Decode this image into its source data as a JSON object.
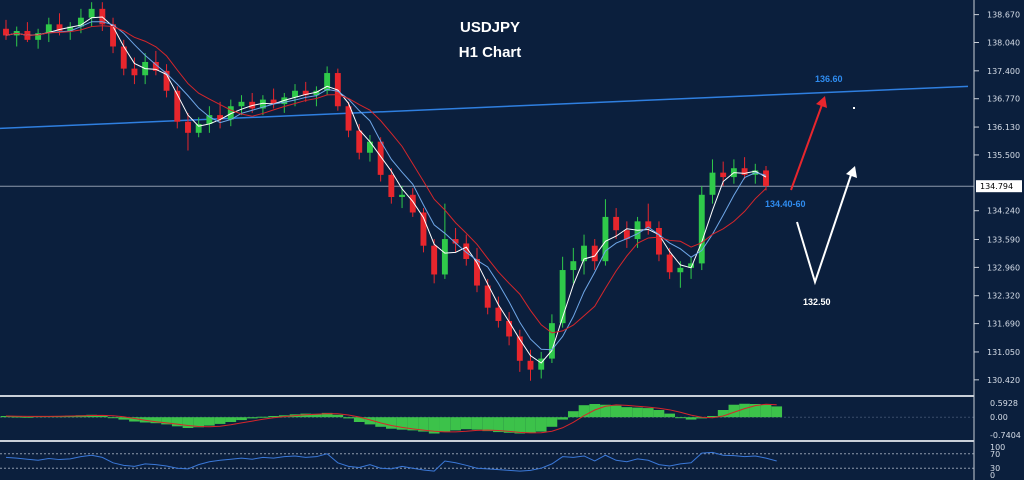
{
  "chart_data": {
    "type": "candlestick",
    "title": "USDJPY",
    "subtitle": "H1 Chart",
    "price_axis": {
      "ticks": [
        "138.670",
        "138.040",
        "137.400",
        "136.770",
        "136.130",
        "135.500",
        "134.240",
        "133.590",
        "132.960",
        "132.320",
        "131.690",
        "131.050",
        "130.420"
      ],
      "range": [
        130.1,
        139.0
      ]
    },
    "current_price": "134.794",
    "candles": [
      {
        "o": 138.35,
        "h": 138.55,
        "l": 138.1,
        "c": 138.2
      },
      {
        "o": 138.2,
        "h": 138.4,
        "l": 137.95,
        "c": 138.3
      },
      {
        "o": 138.3,
        "h": 138.5,
        "l": 138.05,
        "c": 138.1
      },
      {
        "o": 138.1,
        "h": 138.35,
        "l": 137.9,
        "c": 138.25
      },
      {
        "o": 138.25,
        "h": 138.6,
        "l": 138.05,
        "c": 138.45
      },
      {
        "o": 138.45,
        "h": 138.7,
        "l": 138.2,
        "c": 138.3
      },
      {
        "o": 138.3,
        "h": 138.5,
        "l": 138.1,
        "c": 138.4
      },
      {
        "o": 138.4,
        "h": 138.8,
        "l": 138.25,
        "c": 138.6
      },
      {
        "o": 138.6,
        "h": 138.95,
        "l": 138.4,
        "c": 138.8
      },
      {
        "o": 138.8,
        "h": 138.95,
        "l": 138.3,
        "c": 138.45
      },
      {
        "o": 138.45,
        "h": 138.6,
        "l": 137.8,
        "c": 137.95
      },
      {
        "o": 137.95,
        "h": 138.1,
        "l": 137.3,
        "c": 137.45
      },
      {
        "o": 137.45,
        "h": 137.7,
        "l": 137.1,
        "c": 137.3
      },
      {
        "o": 137.3,
        "h": 137.8,
        "l": 137.1,
        "c": 137.6
      },
      {
        "o": 137.6,
        "h": 137.85,
        "l": 137.3,
        "c": 137.4
      },
      {
        "o": 137.4,
        "h": 137.55,
        "l": 136.8,
        "c": 136.95
      },
      {
        "o": 136.95,
        "h": 137.05,
        "l": 136.1,
        "c": 136.25
      },
      {
        "o": 136.25,
        "h": 136.45,
        "l": 135.6,
        "c": 136.0
      },
      {
        "o": 136.0,
        "h": 136.35,
        "l": 135.9,
        "c": 136.2
      },
      {
        "o": 136.2,
        "h": 136.6,
        "l": 136.0,
        "c": 136.4
      },
      {
        "o": 136.4,
        "h": 136.7,
        "l": 136.1,
        "c": 136.3
      },
      {
        "o": 136.3,
        "h": 136.75,
        "l": 136.15,
        "c": 136.6
      },
      {
        "o": 136.6,
        "h": 136.85,
        "l": 136.4,
        "c": 136.7
      },
      {
        "o": 136.7,
        "h": 136.9,
        "l": 136.45,
        "c": 136.55
      },
      {
        "o": 136.55,
        "h": 136.85,
        "l": 136.4,
        "c": 136.75
      },
      {
        "o": 136.75,
        "h": 137.0,
        "l": 136.55,
        "c": 136.65
      },
      {
        "o": 136.65,
        "h": 136.9,
        "l": 136.45,
        "c": 136.8
      },
      {
        "o": 136.8,
        "h": 137.1,
        "l": 136.6,
        "c": 136.95
      },
      {
        "o": 136.95,
        "h": 137.15,
        "l": 136.7,
        "c": 136.85
      },
      {
        "o": 136.85,
        "h": 137.05,
        "l": 136.6,
        "c": 136.95
      },
      {
        "o": 136.95,
        "h": 137.5,
        "l": 136.85,
        "c": 137.35
      },
      {
        "o": 137.35,
        "h": 137.45,
        "l": 136.5,
        "c": 136.6
      },
      {
        "o": 136.6,
        "h": 136.7,
        "l": 135.9,
        "c": 136.05
      },
      {
        "o": 136.05,
        "h": 136.2,
        "l": 135.4,
        "c": 135.55
      },
      {
        "o": 135.55,
        "h": 135.95,
        "l": 135.35,
        "c": 135.8
      },
      {
        "o": 135.8,
        "h": 135.9,
        "l": 134.9,
        "c": 135.05
      },
      {
        "o": 135.05,
        "h": 135.2,
        "l": 134.4,
        "c": 134.55
      },
      {
        "o": 134.55,
        "h": 134.8,
        "l": 134.3,
        "c": 134.6
      },
      {
        "o": 134.6,
        "h": 134.75,
        "l": 134.1,
        "c": 134.2
      },
      {
        "o": 134.2,
        "h": 134.3,
        "l": 133.3,
        "c": 133.45
      },
      {
        "o": 133.45,
        "h": 133.6,
        "l": 132.6,
        "c": 132.8
      },
      {
        "o": 132.8,
        "h": 134.4,
        "l": 132.7,
        "c": 133.6
      },
      {
        "o": 133.6,
        "h": 133.85,
        "l": 133.3,
        "c": 133.5
      },
      {
        "o": 133.5,
        "h": 133.7,
        "l": 133.0,
        "c": 133.15
      },
      {
        "o": 133.15,
        "h": 133.4,
        "l": 132.4,
        "c": 132.55
      },
      {
        "o": 132.55,
        "h": 132.7,
        "l": 131.9,
        "c": 132.05
      },
      {
        "o": 132.05,
        "h": 132.3,
        "l": 131.6,
        "c": 131.75
      },
      {
        "o": 131.75,
        "h": 131.95,
        "l": 131.2,
        "c": 131.4
      },
      {
        "o": 131.4,
        "h": 131.55,
        "l": 130.6,
        "c": 130.85
      },
      {
        "o": 130.85,
        "h": 131.1,
        "l": 130.4,
        "c": 130.65
      },
      {
        "o": 130.65,
        "h": 131.05,
        "l": 130.45,
        "c": 130.9
      },
      {
        "o": 130.9,
        "h": 131.9,
        "l": 130.8,
        "c": 131.7
      },
      {
        "o": 131.7,
        "h": 133.2,
        "l": 131.6,
        "c": 132.9
      },
      {
        "o": 132.9,
        "h": 133.4,
        "l": 132.6,
        "c": 133.1
      },
      {
        "o": 133.1,
        "h": 133.7,
        "l": 132.8,
        "c": 133.45
      },
      {
        "o": 133.45,
        "h": 133.6,
        "l": 132.9,
        "c": 133.1
      },
      {
        "o": 133.1,
        "h": 134.5,
        "l": 133.0,
        "c": 134.1
      },
      {
        "o": 134.1,
        "h": 134.3,
        "l": 133.6,
        "c": 133.8
      },
      {
        "o": 133.8,
        "h": 134.0,
        "l": 133.4,
        "c": 133.6
      },
      {
        "o": 133.6,
        "h": 134.1,
        "l": 133.4,
        "c": 134.0
      },
      {
        "o": 134.0,
        "h": 134.4,
        "l": 133.7,
        "c": 133.85
      },
      {
        "o": 133.85,
        "h": 134.0,
        "l": 133.1,
        "c": 133.25
      },
      {
        "o": 133.25,
        "h": 133.4,
        "l": 132.7,
        "c": 132.85
      },
      {
        "o": 132.85,
        "h": 133.1,
        "l": 132.5,
        "c": 132.95
      },
      {
        "o": 132.95,
        "h": 133.2,
        "l": 132.7,
        "c": 133.05
      },
      {
        "o": 133.05,
        "h": 134.8,
        "l": 132.9,
        "c": 134.6
      },
      {
        "o": 134.6,
        "h": 135.4,
        "l": 134.4,
        "c": 135.1
      },
      {
        "o": 135.1,
        "h": 135.35,
        "l": 134.8,
        "c": 135.0
      },
      {
        "o": 135.0,
        "h": 135.4,
        "l": 134.85,
        "c": 135.2
      },
      {
        "o": 135.2,
        "h": 135.45,
        "l": 134.95,
        "c": 135.05
      },
      {
        "o": 135.05,
        "h": 135.3,
        "l": 134.85,
        "c": 135.15
      },
      {
        "o": 135.15,
        "h": 135.25,
        "l": 134.7,
        "c": 134.8
      }
    ],
    "trendline": {
      "color": "#2f7fe0",
      "label": "136.60",
      "start_price": 136.1,
      "end_price": 137.05
    },
    "horizontal_line": {
      "price": 134.794,
      "color": "#8d99ab"
    },
    "annotations": [
      {
        "text": "136.60",
        "color": "#2f8cf0"
      },
      {
        "text": "134.40-60",
        "color": "#2f8cf0"
      },
      {
        "text": "132.50",
        "color": "#ffffff"
      }
    ],
    "macd": {
      "ticks": [
        "0.5928",
        "0.00",
        "-0.7404"
      ],
      "range": [
        -0.95,
        0.8
      ],
      "values": [
        0.05,
        0.03,
        0.02,
        0.04,
        0.05,
        0.04,
        0.06,
        0.08,
        0.1,
        0.07,
        0.0,
        -0.1,
        -0.18,
        -0.22,
        -0.25,
        -0.3,
        -0.38,
        -0.45,
        -0.42,
        -0.35,
        -0.28,
        -0.2,
        -0.12,
        -0.05,
        0.02,
        0.05,
        0.08,
        0.12,
        0.15,
        0.14,
        0.18,
        0.1,
        -0.05,
        -0.2,
        -0.3,
        -0.4,
        -0.48,
        -0.52,
        -0.55,
        -0.6,
        -0.68,
        -0.62,
        -0.55,
        -0.5,
        -0.52,
        -0.58,
        -0.62,
        -0.65,
        -0.68,
        -0.66,
        -0.6,
        -0.4,
        -0.1,
        0.25,
        0.5,
        0.55,
        0.52,
        0.48,
        0.42,
        0.4,
        0.38,
        0.3,
        0.15,
        0.0,
        -0.1,
        -0.05,
        0.05,
        0.3,
        0.52,
        0.56,
        0.55,
        0.52,
        0.45
      ]
    },
    "rsi": {
      "ticks": [
        "100",
        "70",
        "30",
        "0"
      ],
      "range": [
        0,
        100
      ],
      "values": [
        60,
        58,
        55,
        52,
        57,
        54,
        56,
        62,
        66,
        60,
        45,
        38,
        35,
        42,
        40,
        36,
        30,
        28,
        40,
        48,
        52,
        55,
        58,
        55,
        60,
        58,
        62,
        64,
        60,
        62,
        70,
        45,
        35,
        32,
        40,
        30,
        28,
        35,
        30,
        25,
        22,
        50,
        45,
        38,
        30,
        28,
        26,
        24,
        22,
        24,
        30,
        42,
        62,
        60,
        64,
        50,
        66,
        52,
        48,
        56,
        52,
        40,
        36,
        42,
        45,
        72,
        74,
        66,
        65,
        62,
        64,
        58,
        50
      ]
    },
    "colors": {
      "bull": "#2fc94a",
      "bear": "#e8262d",
      "ma_white": "#ffffff",
      "ma_red": "#d6262b",
      "ma_blue": "#6fa7e8",
      "macd_hist": "#3cc24a",
      "macd_signal": "#d6262b",
      "rsi": "#3a78d8"
    }
  }
}
